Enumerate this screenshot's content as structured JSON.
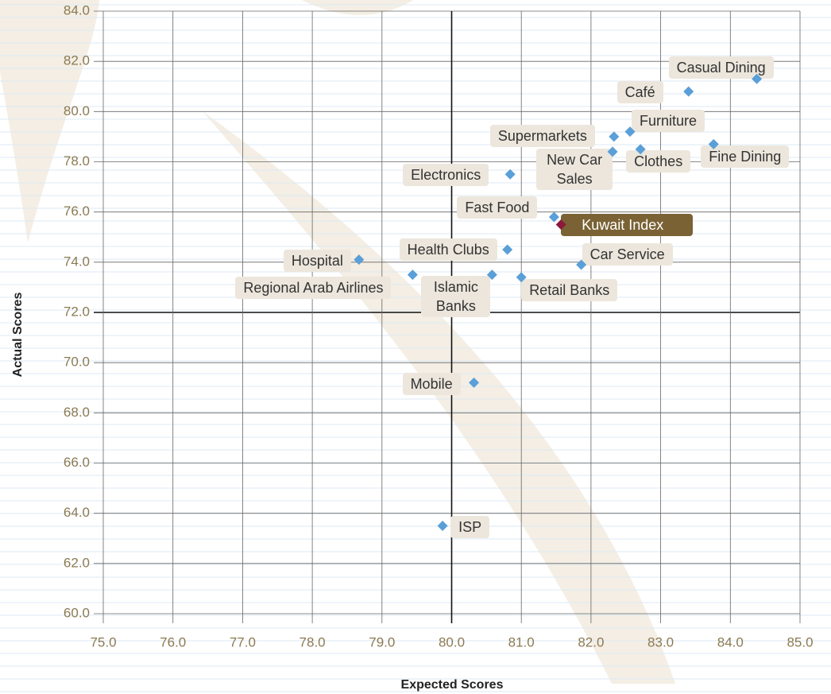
{
  "chart_data": {
    "type": "scatter",
    "x_label": "Expected Scores",
    "y_label": "Actual Scores",
    "xlim": [
      75,
      85
    ],
    "ylim": [
      60,
      84
    ],
    "xticks": [
      {
        "value": 75,
        "label": "75.0"
      },
      {
        "value": 76,
        "label": "76.0"
      },
      {
        "value": 77,
        "label": "77.0"
      },
      {
        "value": 78,
        "label": "78.0"
      },
      {
        "value": 79,
        "label": "79.0"
      },
      {
        "value": 80,
        "label": "80.0"
      },
      {
        "value": 81,
        "label": "81.0"
      },
      {
        "value": 82,
        "label": "82.0"
      },
      {
        "value": 83,
        "label": "83.0"
      },
      {
        "value": 84,
        "label": "84.0"
      },
      {
        "value": 85,
        "label": "85.0"
      }
    ],
    "yticks": [
      {
        "value": 60,
        "label": "60.0"
      },
      {
        "value": 62,
        "label": "62.0"
      },
      {
        "value": 64,
        "label": "64.0"
      },
      {
        "value": 66,
        "label": "66.0"
      },
      {
        "value": 68,
        "label": "68.0"
      },
      {
        "value": 70,
        "label": "70.0"
      },
      {
        "value": 72,
        "label": "72.0"
      },
      {
        "value": 74,
        "label": "74.0"
      },
      {
        "value": 76,
        "label": "76.0"
      },
      {
        "value": 78,
        "label": "78.0"
      },
      {
        "value": 80,
        "label": "80.0"
      },
      {
        "value": 82,
        "label": "82.0"
      },
      {
        "value": 84,
        "label": "84.0"
      }
    ],
    "grid": true,
    "series": [
      {
        "color": "#5a9fd8",
        "labels": [
          "Casual Dining",
          "Café",
          "Furniture",
          "Supermarkets",
          "New Car Sales",
          "Clothes",
          "Fine Dining",
          "Electronics",
          "Fast Food",
          "Health Clubs",
          "Hospital",
          "Regional Arab Airlines",
          "Islamic Banks",
          "Retail Banks",
          "Car Service",
          "Mobile",
          "ISP"
        ],
        "x": [
          84.38,
          83.4,
          82.56,
          82.33,
          82.31,
          82.71,
          83.76,
          80.84,
          81.47,
          80.8,
          78.67,
          79.44,
          80.58,
          81.0,
          81.86,
          80.32,
          79.87
        ],
        "y": [
          81.3,
          80.8,
          79.2,
          79.0,
          78.4,
          78.5,
          78.7,
          77.5,
          75.8,
          74.5,
          74.1,
          73.5,
          73.5,
          73.4,
          73.9,
          69.2,
          63.5
        ]
      },
      {
        "color": "#8b1a3a",
        "labels": [
          "Kuwait Index"
        ],
        "x": [
          81.57
        ],
        "y": [
          75.5
        ]
      }
    ]
  }
}
